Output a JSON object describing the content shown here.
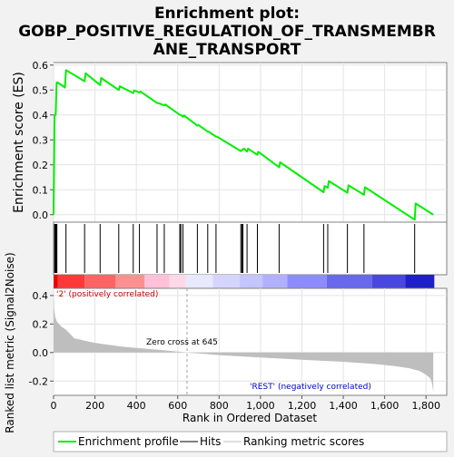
{
  "chart_data": {
    "type": "line",
    "title": "Enrichment plot:",
    "subtitle_lines": [
      "GOBP_POSITIVE_REGULATION_OF_TRANSMEMBR",
      "ANE_TRANSPORT"
    ],
    "es_panel": {
      "ylabel": "Enrichment score (ES)",
      "ylim": [
        -0.03,
        0.61
      ],
      "yticks": [
        "0.0",
        "0.1",
        "0.2",
        "0.3",
        "0.4",
        "0.5",
        "0.6"
      ],
      "ytick_values": [
        0.0,
        0.1,
        0.2,
        0.3,
        0.4,
        0.5,
        0.6
      ],
      "series_name": "Enrichment profile",
      "series_color": "#00ee00",
      "x": [
        0,
        5,
        10,
        15,
        20,
        55,
        60,
        150,
        155,
        225,
        230,
        315,
        320,
        385,
        390,
        415,
        420,
        500,
        505,
        535,
        540,
        610,
        615,
        625,
        630,
        695,
        700,
        745,
        750,
        785,
        790,
        905,
        910,
        915,
        920,
        935,
        940,
        985,
        990,
        1090,
        1095,
        1305,
        1310,
        1325,
        1330,
        1420,
        1425,
        1500,
        1505,
        1745,
        1750,
        1835
      ],
      "y": [
        0.0,
        0.4,
        0.4,
        0.53,
        0.53,
        0.51,
        0.58,
        0.535,
        0.567,
        0.52,
        0.548,
        0.5,
        0.515,
        0.488,
        0.498,
        0.49,
        0.494,
        0.448,
        0.448,
        0.438,
        0.442,
        0.4,
        0.4,
        0.393,
        0.398,
        0.357,
        0.36,
        0.333,
        0.333,
        0.313,
        0.313,
        0.255,
        0.258,
        0.262,
        0.265,
        0.253,
        0.265,
        0.24,
        0.252,
        0.19,
        0.21,
        0.09,
        0.115,
        0.108,
        0.135,
        0.088,
        0.118,
        0.08,
        0.11,
        -0.02,
        0.045,
        0.0
      ]
    },
    "hits": [
      5,
      8,
      10,
      13,
      16,
      60,
      150,
      225,
      315,
      385,
      415,
      500,
      535,
      610,
      615,
      625,
      695,
      745,
      785,
      905,
      910,
      915,
      935,
      985,
      1090,
      1305,
      1325,
      1420,
      1500,
      1745
    ],
    "color_bar": {
      "segments": [
        {
          "from": 0,
          "to": 20,
          "color": "#ee0000"
        },
        {
          "from": 20,
          "to": 150,
          "color": "#ff3838"
        },
        {
          "from": 150,
          "to": 300,
          "color": "#ff6464"
        },
        {
          "from": 300,
          "to": 440,
          "color": "#ff9090"
        },
        {
          "from": 440,
          "to": 560,
          "color": "#ffc0d8"
        },
        {
          "from": 560,
          "to": 640,
          "color": "#ffd8e8"
        },
        {
          "from": 640,
          "to": 770,
          "color": "#e8e8ff"
        },
        {
          "from": 770,
          "to": 900,
          "color": "#d4d4ff"
        },
        {
          "from": 900,
          "to": 1010,
          "color": "#c4c4ff"
        },
        {
          "from": 1010,
          "to": 1130,
          "color": "#b0b0ff"
        },
        {
          "from": 1130,
          "to": 1320,
          "color": "#8c8cff"
        },
        {
          "from": 1320,
          "to": 1540,
          "color": "#6868ee"
        },
        {
          "from": 1540,
          "to": 1700,
          "color": "#4848e0"
        },
        {
          "from": 1700,
          "to": 1840,
          "color": "#2020c8"
        }
      ]
    },
    "metric_panel": {
      "ylabel": "Ranked list metric (Signal2Noise)",
      "ylim": [
        -0.3,
        0.45
      ],
      "yticks": [
        "-0.2",
        "0.0",
        "0.2",
        "0.4"
      ],
      "ytick_values": [
        -0.2,
        0.0,
        0.2,
        0.4
      ],
      "x": [
        0,
        3,
        8,
        15,
        25,
        40,
        60,
        80,
        100,
        130,
        160,
        200,
        260,
        330,
        420,
        520,
        645,
        800,
        1000,
        1200,
        1400,
        1550,
        1650,
        1720,
        1770,
        1800,
        1820,
        1830,
        1835
      ],
      "y": [
        0.44,
        0.3,
        0.25,
        0.22,
        0.2,
        0.18,
        0.16,
        0.13,
        0.1,
        0.09,
        0.08,
        0.068,
        0.055,
        0.042,
        0.03,
        0.018,
        0.0,
        -0.018,
        -0.035,
        -0.05,
        -0.065,
        -0.08,
        -0.095,
        -0.11,
        -0.13,
        -0.155,
        -0.18,
        -0.22,
        -0.28
      ],
      "fill_color": "#bebebe",
      "label_positive": "'2' (positively correlated)",
      "label_negative": "'REST' (negatively correlated)",
      "zero_cross_label": "Zero cross at 645",
      "zero_cross": 645
    },
    "xlabel": "Rank in Ordered Dataset",
    "xlim": [
      0,
      1900
    ],
    "xticks": [
      "0",
      "200",
      "400",
      "600",
      "800",
      "1,000",
      "1,200",
      "1,400",
      "1,600",
      "1,800"
    ],
    "xtick_values": [
      0,
      200,
      400,
      600,
      800,
      1000,
      1200,
      1400,
      1600,
      1800
    ],
    "legend": [
      {
        "label": "Enrichment profile",
        "color": "#00ee00"
      },
      {
        "label": "Hits",
        "color": "#000000"
      },
      {
        "label": "Ranking metric scores",
        "color": "#bebebe"
      }
    ]
  }
}
